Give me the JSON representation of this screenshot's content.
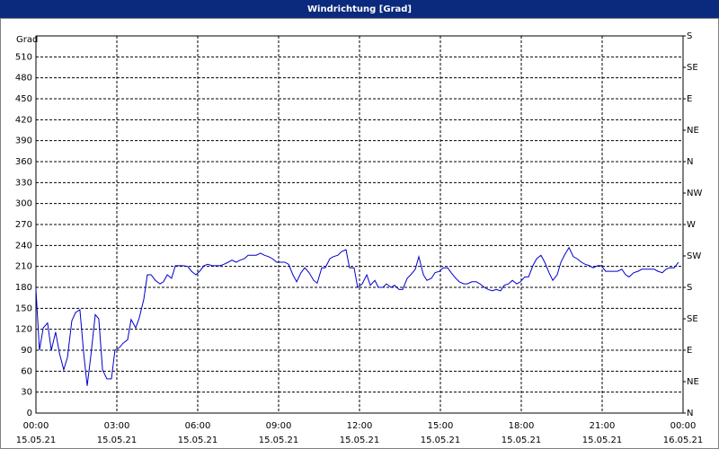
{
  "chart_data": {
    "type": "line",
    "title": "Windrichtung [Grad]",
    "y_label": "Grad",
    "xlim": [
      0,
      24
    ],
    "xticks": [
      {
        "value": 0,
        "label": "00:00"
      },
      {
        "value": 3,
        "label": "03:00"
      },
      {
        "value": 6,
        "label": "06:00"
      },
      {
        "value": 9,
        "label": "09:00"
      },
      {
        "value": 12,
        "label": "12:00"
      },
      {
        "value": 15,
        "label": "15:00"
      },
      {
        "value": 18,
        "label": "18:00"
      },
      {
        "value": 21,
        "label": "21:00"
      },
      {
        "value": 24,
        "label": "00:00"
      }
    ],
    "xtick_dates": [
      "15.05.21",
      "15.05.21",
      "15.05.21",
      "15.05.21",
      "15.05.21",
      "15.05.21",
      "15.05.21",
      "15.05.21",
      "16.05.21"
    ],
    "ylim": [
      0,
      540
    ],
    "yticks": [
      0,
      30,
      60,
      90,
      120,
      150,
      180,
      210,
      240,
      270,
      300,
      330,
      360,
      390,
      420,
      450,
      480,
      510
    ],
    "y2lim": [
      0,
      540
    ],
    "y2ticks": [
      {
        "value": 0,
        "label": "N"
      },
      {
        "value": 45,
        "label": "NE"
      },
      {
        "value": 90,
        "label": "E"
      },
      {
        "value": 135,
        "label": "SE"
      },
      {
        "value": 180,
        "label": "S"
      },
      {
        "value": 225,
        "label": "SW"
      },
      {
        "value": 270,
        "label": "W"
      },
      {
        "value": 315,
        "label": "NW"
      },
      {
        "value": 360,
        "label": "N"
      },
      {
        "value": 405,
        "label": "NE"
      },
      {
        "value": 450,
        "label": "E"
      },
      {
        "value": 495,
        "label": "SE"
      },
      {
        "value": 540,
        "label": "S"
      }
    ],
    "grid": true,
    "x": [
      0,
      0.13,
      0.27,
      0.43,
      0.57,
      0.73,
      0.87,
      1.03,
      1.17,
      1.33,
      1.47,
      1.63,
      1.77,
      1.9,
      2.03,
      2.2,
      2.33,
      2.47,
      2.63,
      2.8,
      2.93,
      3.1,
      3.23,
      3.4,
      3.53,
      3.7,
      3.83,
      4,
      4.13,
      4.27,
      4.43,
      4.6,
      4.73,
      4.87,
      5.03,
      5.17,
      5.33,
      5.47,
      5.63,
      5.77,
      5.93,
      6.07,
      6.23,
      6.37,
      6.53,
      6.67,
      6.83,
      6.97,
      7.13,
      7.27,
      7.43,
      7.57,
      7.73,
      7.87,
      8.03,
      8.17,
      8.33,
      8.47,
      8.63,
      8.77,
      8.93,
      9.07,
      9.23,
      9.37,
      9.53,
      9.67,
      9.83,
      9.97,
      10.13,
      10.3,
      10.43,
      10.6,
      10.73,
      10.9,
      11.03,
      11.2,
      11.33,
      11.5,
      11.63,
      11.8,
      11.93,
      12.1,
      12.27,
      12.4,
      12.57,
      12.7,
      12.87,
      13,
      13.17,
      13.3,
      13.47,
      13.6,
      13.77,
      13.9,
      14.07,
      14.2,
      14.37,
      14.5,
      14.67,
      14.8,
      14.97,
      15.1,
      15.27,
      15.4,
      15.57,
      15.7,
      15.87,
      16,
      16.17,
      16.33,
      16.47,
      16.63,
      16.77,
      16.93,
      17.07,
      17.23,
      17.37,
      17.53,
      17.67,
      17.83,
      17.97,
      18.13,
      18.27,
      18.43,
      18.57,
      18.73,
      18.87,
      19.03,
      19.17,
      19.33,
      19.47,
      19.6,
      19.77,
      19.93,
      20.07,
      20.23,
      20.37,
      20.53,
      20.67,
      20.83,
      20.97,
      21.13,
      21.27,
      21.43,
      21.57,
      21.73,
      21.87,
      22,
      22.17,
      22.33,
      22.47,
      22.63,
      22.77,
      22.93,
      23.07,
      23.23,
      23.37,
      23.5,
      23.67,
      23.83
    ],
    "series": [
      {
        "color": "#0000cc",
        "values": [
          177,
          90,
          122,
          129,
          90,
          116,
          86,
          62,
          80,
          132,
          144,
          148,
          86,
          39,
          80,
          141,
          135,
          62,
          49,
          49,
          90,
          94,
          100,
          105,
          134,
          122,
          136,
          163,
          198,
          198,
          190,
          185,
          188,
          198,
          193,
          211,
          211,
          211,
          210,
          203,
          198,
          203,
          211,
          213,
          211,
          211,
          211,
          213,
          216,
          219,
          216,
          219,
          221,
          226,
          226,
          226,
          229,
          226,
          224,
          221,
          216,
          216,
          216,
          213,
          198,
          188,
          201,
          208,
          201,
          190,
          186,
          208,
          208,
          221,
          224,
          226,
          231,
          234,
          208,
          208,
          180,
          185,
          198,
          183,
          190,
          180,
          180,
          185,
          180,
          183,
          177,
          177,
          193,
          198,
          206,
          224,
          198,
          190,
          193,
          201,
          203,
          208,
          208,
          201,
          193,
          188,
          185,
          185,
          188,
          188,
          185,
          180,
          177,
          175,
          177,
          175,
          183,
          185,
          190,
          185,
          188,
          195,
          195,
          211,
          221,
          226,
          216,
          201,
          190,
          198,
          216,
          226,
          237,
          224,
          221,
          216,
          213,
          211,
          208,
          211,
          211,
          203,
          203,
          203,
          203,
          206,
          198,
          195,
          201,
          203,
          206,
          206,
          206,
          206,
          203,
          201,
          206,
          208,
          208,
          216
        ]
      }
    ]
  }
}
